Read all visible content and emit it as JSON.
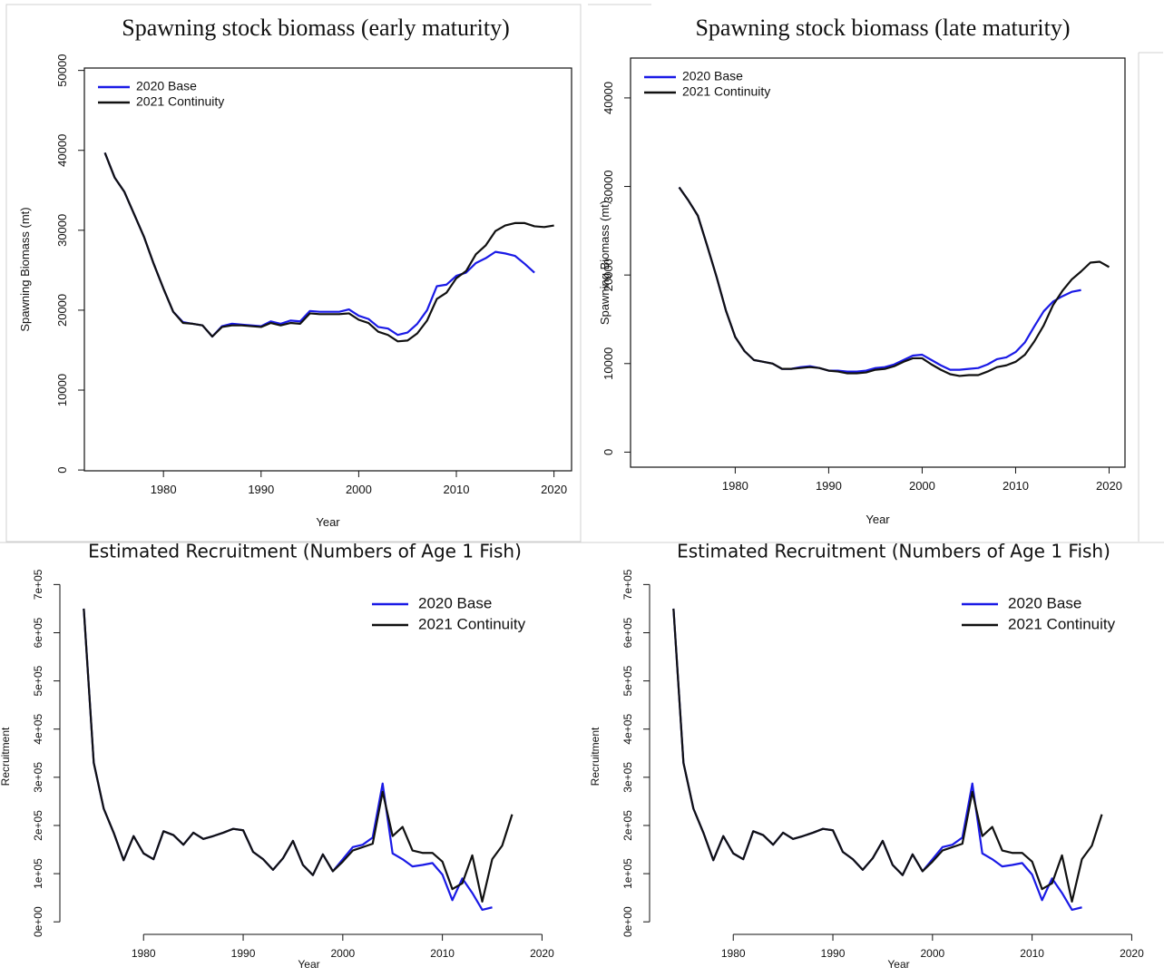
{
  "chart_data": [
    {
      "type": "line",
      "title": "Spawning stock biomass (early maturity)",
      "xlabel": "Year",
      "ylabel": "Spawning Biomass (mt)",
      "x": [
        1974,
        1975,
        1976,
        1977,
        1978,
        1979,
        1980,
        1981,
        1982,
        1983,
        1984,
        1985,
        1986,
        1987,
        1988,
        1989,
        1990,
        1991,
        1992,
        1993,
        1994,
        1995,
        1996,
        1997,
        1998,
        1999,
        2000,
        2001,
        2002,
        2003,
        2004,
        2005,
        2006,
        2007,
        2008,
        2009,
        2010,
        2011,
        2012,
        2013,
        2014,
        2015,
        2016,
        2017,
        2018,
        2019,
        2020
      ],
      "series": [
        {
          "name": "2020 Base",
          "color": "#1a1ae6",
          "values": [
            39700,
            36600,
            34800,
            32000,
            29200,
            25800,
            22700,
            19800,
            18500,
            18300,
            18100,
            16700,
            18000,
            18300,
            18200,
            18100,
            18000,
            18600,
            18300,
            18700,
            18600,
            19900,
            19800,
            19800,
            19800,
            20100,
            19300,
            18900,
            17900,
            17700,
            16900,
            17200,
            18300,
            20000,
            23000,
            23200,
            24300,
            24700,
            25900,
            26500,
            27300,
            27100,
            26800,
            25800,
            24700,
            null,
            null
          ]
        },
        {
          "name": "2021 Continuity",
          "color": "#111111",
          "values": [
            39700,
            36600,
            34800,
            32000,
            29200,
            25800,
            22700,
            19800,
            18400,
            18300,
            18100,
            16700,
            17900,
            18100,
            18100,
            18000,
            17900,
            18400,
            18100,
            18400,
            18300,
            19600,
            19500,
            19500,
            19500,
            19600,
            18800,
            18400,
            17300,
            16900,
            16100,
            16200,
            17100,
            18700,
            21400,
            22200,
            24000,
            24900,
            27000,
            28100,
            29900,
            30600,
            30900,
            30900,
            30500,
            30400,
            30600
          ]
        }
      ],
      "xlim": [
        1971.9,
        2021.8
      ],
      "xticks": [
        1980,
        1990,
        2000,
        2010,
        2020
      ],
      "ylim": [
        -100,
        50300
      ],
      "yticks": [
        0,
        10000,
        20000,
        30000,
        40000,
        50000
      ],
      "legend": "top-left",
      "box": true
    },
    {
      "type": "line",
      "title": "Spawning stock biomass (late maturity)",
      "xlabel": "Year",
      "ylabel": "Spawning Biomass (mt)",
      "x": [
        1974,
        1975,
        1976,
        1977,
        1978,
        1979,
        1980,
        1981,
        1982,
        1983,
        1984,
        1985,
        1986,
        1987,
        1988,
        1989,
        1990,
        1991,
        1992,
        1993,
        1994,
        1995,
        1996,
        1997,
        1998,
        1999,
        2000,
        2001,
        2002,
        2003,
        2004,
        2005,
        2006,
        2007,
        2008,
        2009,
        2010,
        2011,
        2012,
        2013,
        2014,
        2015,
        2016,
        2017,
        2018,
        2019,
        2020
      ],
      "series": [
        {
          "name": "2020 Base",
          "color": "#1a1ae6",
          "values": [
            29900,
            28400,
            26700,
            23300,
            19800,
            16000,
            13000,
            11400,
            10400,
            10200,
            10000,
            9400,
            9400,
            9600,
            9700,
            9500,
            9200,
            9200,
            9100,
            9100,
            9200,
            9500,
            9600,
            9900,
            10400,
            10900,
            11000,
            10400,
            9800,
            9300,
            9300,
            9400,
            9500,
            9900,
            10500,
            10700,
            11300,
            12400,
            14200,
            15900,
            17000,
            17600,
            18100,
            18300,
            null,
            null,
            null
          ]
        },
        {
          "name": "2021 Continuity",
          "color": "#111111",
          "values": [
            29900,
            28400,
            26700,
            23300,
            19800,
            16000,
            13000,
            11400,
            10400,
            10200,
            10000,
            9400,
            9400,
            9500,
            9600,
            9500,
            9200,
            9100,
            8900,
            8900,
            9000,
            9300,
            9400,
            9700,
            10200,
            10600,
            10600,
            9900,
            9300,
            8800,
            8600,
            8700,
            8700,
            9100,
            9600,
            9800,
            10200,
            11000,
            12500,
            14300,
            16600,
            18200,
            19500,
            20400,
            21400,
            21500,
            20900
          ]
        }
      ],
      "xlim": [
        1968.8,
        2021.7
      ],
      "xticks": [
        1980,
        1990,
        2000,
        2010,
        2020
      ],
      "ylim": [
        -1700,
        44500
      ],
      "yticks": [
        0,
        10000,
        20000,
        30000,
        40000
      ],
      "legend": "top-left",
      "box": true
    },
    {
      "type": "line",
      "title": "Estimated Recruitment (Numbers of Age 1 Fish)",
      "xlabel": "Year",
      "ylabel": "Recruitment",
      "x": [
        1974,
        1975,
        1976,
        1977,
        1978,
        1979,
        1980,
        1981,
        1982,
        1983,
        1984,
        1985,
        1986,
        1987,
        1988,
        1989,
        1990,
        1991,
        1992,
        1993,
        1994,
        1995,
        1996,
        1997,
        1998,
        1999,
        2000,
        2001,
        2002,
        2003,
        2004,
        2005,
        2006,
        2007,
        2008,
        2009,
        2010,
        2011,
        2012,
        2013,
        2014,
        2015,
        2016,
        2017
      ],
      "series": [
        {
          "name": "2020 Base",
          "color": "#1a1ae6",
          "values": [
            650000,
            330000,
            235000,
            185000,
            128000,
            178000,
            142000,
            130000,
            188000,
            180000,
            160000,
            185000,
            172000,
            178000,
            185000,
            193000,
            190000,
            145000,
            130000,
            108000,
            132000,
            168000,
            118000,
            97000,
            140000,
            105000,
            130000,
            155000,
            160000,
            175000,
            287000,
            142000,
            130000,
            115000,
            118000,
            122000,
            98000,
            45000,
            90000,
            60000,
            25000,
            30000,
            null,
            null
          ]
        },
        {
          "name": "2021 Continuity",
          "color": "#111111",
          "values": [
            650000,
            330000,
            235000,
            185000,
            128000,
            178000,
            142000,
            130000,
            188000,
            180000,
            160000,
            185000,
            172000,
            178000,
            185000,
            193000,
            190000,
            145000,
            130000,
            108000,
            132000,
            168000,
            118000,
            97000,
            140000,
            105000,
            125000,
            148000,
            155000,
            162000,
            270000,
            178000,
            197000,
            148000,
            143000,
            143000,
            125000,
            68000,
            80000,
            138000,
            42000,
            130000,
            158000,
            223000
          ]
        }
      ],
      "xlim": [
        1971.6,
        2021.6
      ],
      "xticks": [
        1980,
        1990,
        2000,
        2010,
        2020
      ],
      "ylim": [
        -26000,
        712000
      ],
      "yticks": [
        {
          "value": 0,
          "label": "0e+00"
        },
        {
          "value": 100000,
          "label": "1e+05"
        },
        {
          "value": 200000,
          "label": "2e+05"
        },
        {
          "value": 300000,
          "label": "3e+05"
        },
        {
          "value": 400000,
          "label": "4e+05"
        },
        {
          "value": 500000,
          "label": "5e+05"
        },
        {
          "value": 600000,
          "label": "6e+05"
        },
        {
          "value": 700000,
          "label": "7e+05"
        }
      ],
      "legend": "top-right",
      "box": false
    },
    {
      "type": "line",
      "title": "Estimated Recruitment (Numbers of Age 1 Fish)",
      "xlabel": "Year",
      "ylabel": "Recruitment",
      "x": [
        1974,
        1975,
        1976,
        1977,
        1978,
        1979,
        1980,
        1981,
        1982,
        1983,
        1984,
        1985,
        1986,
        1987,
        1988,
        1989,
        1990,
        1991,
        1992,
        1993,
        1994,
        1995,
        1996,
        1997,
        1998,
        1999,
        2000,
        2001,
        2002,
        2003,
        2004,
        2005,
        2006,
        2007,
        2008,
        2009,
        2010,
        2011,
        2012,
        2013,
        2014,
        2015,
        2016,
        2017
      ],
      "series": [
        {
          "name": "2020 Base",
          "color": "#1a1ae6",
          "values": [
            650000,
            330000,
            235000,
            185000,
            128000,
            178000,
            142000,
            130000,
            188000,
            180000,
            160000,
            185000,
            172000,
            178000,
            185000,
            193000,
            190000,
            145000,
            130000,
            108000,
            132000,
            168000,
            118000,
            97000,
            140000,
            105000,
            130000,
            155000,
            160000,
            175000,
            287000,
            142000,
            130000,
            115000,
            118000,
            122000,
            98000,
            45000,
            90000,
            60000,
            25000,
            30000,
            null,
            null
          ]
        },
        {
          "name": "2021 Continuity",
          "color": "#111111",
          "values": [
            650000,
            330000,
            235000,
            185000,
            128000,
            178000,
            142000,
            130000,
            188000,
            180000,
            160000,
            185000,
            172000,
            178000,
            185000,
            193000,
            190000,
            145000,
            130000,
            108000,
            132000,
            168000,
            118000,
            97000,
            140000,
            105000,
            125000,
            148000,
            155000,
            162000,
            270000,
            178000,
            197000,
            148000,
            143000,
            143000,
            125000,
            68000,
            80000,
            138000,
            42000,
            130000,
            158000,
            223000
          ]
        }
      ],
      "xlim": [
        1971.6,
        2021.6
      ],
      "xticks": [
        1980,
        1990,
        2000,
        2010,
        2020
      ],
      "ylim": [
        -26000,
        712000
      ],
      "yticks": [
        {
          "value": 0,
          "label": "0e+00"
        },
        {
          "value": 100000,
          "label": "1e+05"
        },
        {
          "value": 200000,
          "label": "2e+05"
        },
        {
          "value": 300000,
          "label": "3e+05"
        },
        {
          "value": 400000,
          "label": "4e+05"
        },
        {
          "value": 500000,
          "label": "5e+05"
        },
        {
          "value": 600000,
          "label": "6e+05"
        },
        {
          "value": 700000,
          "label": "7e+05"
        }
      ],
      "legend": "top-right",
      "box": false
    }
  ]
}
